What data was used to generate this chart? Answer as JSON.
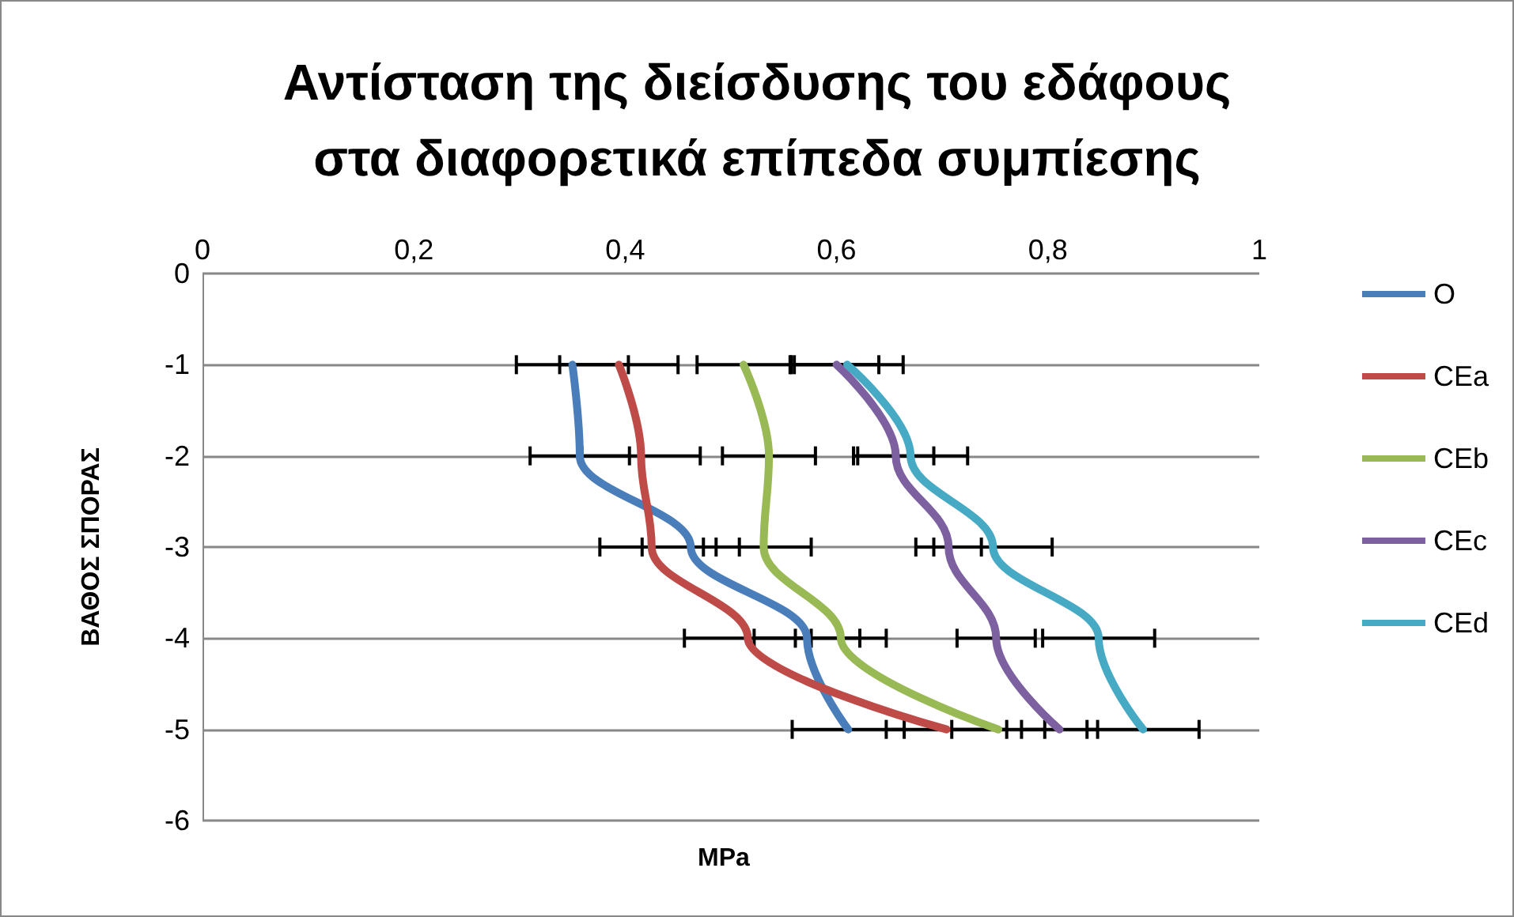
{
  "chart_data": {
    "type": "line",
    "title": "Αντίσταση της διείσδυσης του εδάφους\nστα διαφορετικά επίπεδα συμπίεσης",
    "xlabel": "MPa",
    "ylabel": "ΒΑΘΟΣ ΣΠΟΡΑΣ",
    "xlim": [
      0,
      1
    ],
    "xticks": [
      0,
      {
        "value": 0.2,
        "label": "0,2"
      },
      {
        "value": 0.4,
        "label": "0,4"
      },
      {
        "value": 0.6,
        "label": "0,6"
      },
      {
        "value": 0.8,
        "label": "0,8"
      },
      1
    ],
    "ylim": [
      -6,
      0
    ],
    "yticks": [
      -6,
      -5,
      -4,
      -3,
      -2,
      -1,
      0
    ],
    "grid": "y",
    "legend": "right",
    "marker": "none",
    "line_style": "solid",
    "series": [
      {
        "name": "O",
        "color": "#4a7ebb",
        "x": [
          0.35,
          0.357,
          0.462,
          0.572,
          0.611
        ],
        "values": [
          -1,
          -2,
          -3,
          -4,
          -5
        ],
        "xerrors": [
          0.053,
          0.047,
          0.046,
          0.05,
          0.053
        ]
      },
      {
        "name": "CEa",
        "color": "#be4b48",
        "x": [
          0.394,
          0.415,
          0.425,
          0.516,
          0.704
        ],
        "values": [
          -1,
          -2,
          -3,
          -4,
          -5
        ],
        "xerrors": [
          0.056,
          0.056,
          0.049,
          0.06,
          0.057
        ]
      },
      {
        "name": "CEb",
        "color": "#98b954",
        "x": [
          0.512,
          0.536,
          0.531,
          0.604,
          0.753
        ],
        "values": [
          -1,
          -2,
          -3,
          -4,
          -5
        ],
        "xerrors": [
          0.044,
          0.044,
          0.045,
          0.043,
          0.044
        ]
      },
      {
        "name": "CEc",
        "color": "#7d60a0",
        "x": [
          0.6,
          0.656,
          0.706,
          0.751,
          0.811
        ],
        "values": [
          -1,
          -2,
          -3,
          -4,
          -5
        ],
        "xerrors": [
          0.04,
          0.036,
          0.031,
          0.037,
          0.036
        ]
      },
      {
        "name": "CEd",
        "color": "#46aac5",
        "x": [
          0.61,
          0.67,
          0.748,
          0.848,
          0.89
        ],
        "values": [
          -1,
          -2,
          -3,
          -4,
          -5
        ],
        "xerrors": [
          0.053,
          0.054,
          0.056,
          0.053,
          0.053
        ]
      }
    ]
  }
}
